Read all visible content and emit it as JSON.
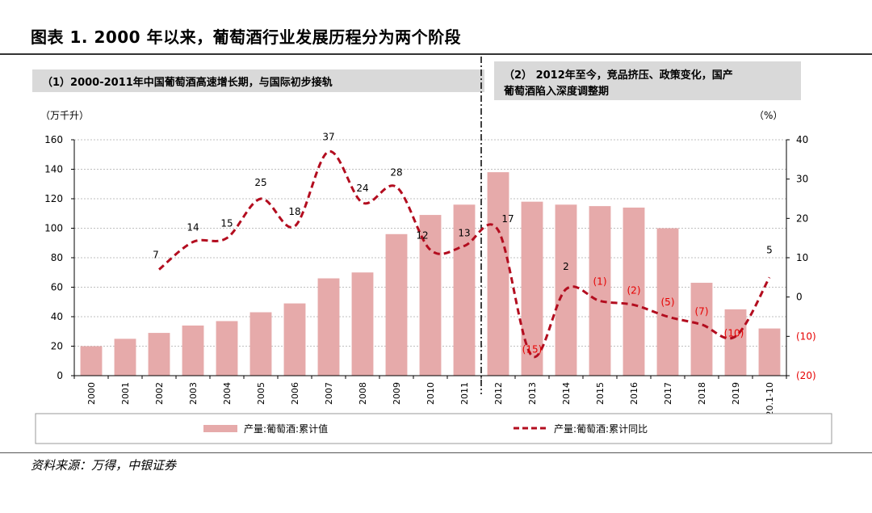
{
  "title": "图表 1. 2000 年以来，葡萄酒行业发展历程分为两个阶段",
  "source": "资料来源：万得，中银证券",
  "phases": [
    {
      "label": "（1）2000-2011年中国葡萄酒高速增长期，与国际初步接轨",
      "color": "#d9d9d9"
    },
    {
      "label_line1": "（2） 2012年至今，竞品挤压、政策变化，国产",
      "label_line2": "葡萄酒陷入深度调整期",
      "color": "#d9d9d9"
    }
  ],
  "chart_data": {
    "type": "bar+line",
    "categories": [
      "2000",
      "2001",
      "2002",
      "2003",
      "2004",
      "2005",
      "2006",
      "2007",
      "2008",
      "2009",
      "2010",
      "2011",
      "2012",
      "2013",
      "2014",
      "2015",
      "2016",
      "2017",
      "2018",
      "2019",
      "20.1-10"
    ],
    "series": [
      {
        "name": "产量:葡萄酒:累计值",
        "type": "bar",
        "axis": "left",
        "color": "#e6aaaa",
        "values": [
          20,
          25,
          29,
          34,
          37,
          43,
          49,
          66,
          70,
          96,
          109,
          116,
          138,
          118,
          116,
          115,
          114,
          100,
          63,
          45,
          32
        ]
      },
      {
        "name": "产量:葡萄酒:累计同比",
        "type": "line",
        "axis": "right",
        "color": "#b30d1f",
        "style": "dashed",
        "values": [
          null,
          null,
          7,
          14,
          15,
          25,
          18,
          37,
          24,
          28,
          12,
          13,
          17,
          -15,
          2,
          -1,
          -2,
          -5,
          -7,
          -10,
          5
        ],
        "labels": [
          null,
          null,
          "7",
          "14",
          "15",
          "25",
          "18",
          "37",
          "24",
          "28",
          "12",
          "13",
          "17",
          "(15)",
          "2",
          "(1)",
          "(2)",
          "(5)",
          "(7)",
          "(10)",
          "5"
        ]
      }
    ],
    "y_left": {
      "unit": "（万千升）",
      "range": [
        0,
        160
      ],
      "ticks": [
        0,
        20,
        40,
        60,
        80,
        100,
        120,
        140,
        160
      ],
      "tick_labels": [
        "0",
        "20",
        "40",
        "60",
        "80",
        "100",
        "120",
        "140",
        "160"
      ]
    },
    "y_right": {
      "unit": "（%）",
      "range": [
        -20,
        40
      ],
      "ticks": [
        -20,
        -10,
        0,
        10,
        20,
        30,
        40
      ],
      "tick_labels": [
        "(20)",
        "(10)",
        "0",
        "10",
        "20",
        "30",
        "40"
      ],
      "negative_color": "#e60000"
    },
    "divider_after_category": "2011",
    "legend_position": "bottom",
    "grid": "horizontal-dotted"
  }
}
